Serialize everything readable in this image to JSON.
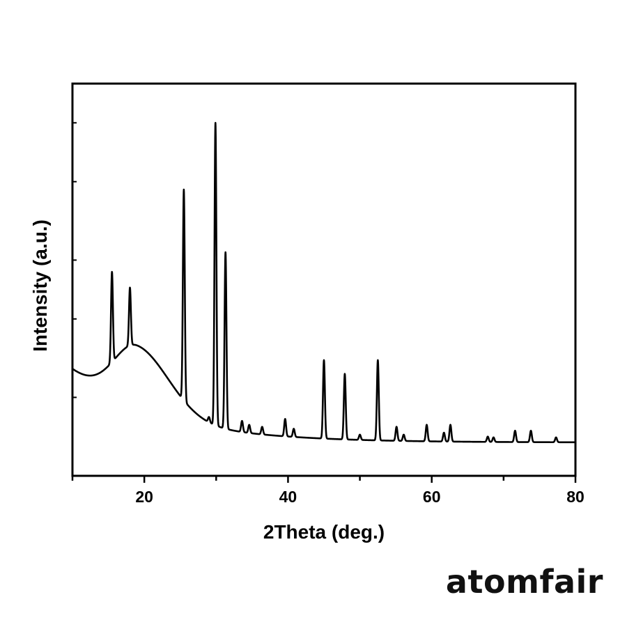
{
  "chart_data": {
    "type": "line",
    "title": "",
    "xlabel": "2Theta (deg.)",
    "ylabel": "Intensity (a.u.)",
    "xlim": [
      10,
      80
    ],
    "ylim": [
      0,
      100
    ],
    "x_ticks": [
      20,
      40,
      60,
      80
    ],
    "y_ticks_labeled": false,
    "grid": false,
    "legend": "none",
    "series": [
      {
        "baseline_start": 27,
        "baseline_end": 8.5,
        "amorphous_hump": {
          "center": 19,
          "height": 16
        },
        "peaks": [
          {
            "x": 15.5,
            "y": 52
          },
          {
            "x": 18.0,
            "y": 48
          },
          {
            "x": 25.5,
            "y": 73
          },
          {
            "x": 29.0,
            "y": 15
          },
          {
            "x": 29.9,
            "y": 90
          },
          {
            "x": 31.3,
            "y": 57
          },
          {
            "x": 33.6,
            "y": 14
          },
          {
            "x": 34.6,
            "y": 13
          },
          {
            "x": 36.4,
            "y": 12.5
          },
          {
            "x": 39.6,
            "y": 14.5
          },
          {
            "x": 40.8,
            "y": 12
          },
          {
            "x": 45.0,
            "y": 29.5
          },
          {
            "x": 47.9,
            "y": 26
          },
          {
            "x": 50.0,
            "y": 10.5
          },
          {
            "x": 52.5,
            "y": 29.5
          },
          {
            "x": 55.1,
            "y": 12.5
          },
          {
            "x": 56.1,
            "y": 10.5
          },
          {
            "x": 59.3,
            "y": 13
          },
          {
            "x": 61.7,
            "y": 11
          },
          {
            "x": 62.6,
            "y": 13
          },
          {
            "x": 67.8,
            "y": 10
          },
          {
            "x": 68.6,
            "y": 9.8
          },
          {
            "x": 71.6,
            "y": 11.5
          },
          {
            "x": 73.8,
            "y": 11.5
          },
          {
            "x": 77.3,
            "y": 9.8
          }
        ]
      }
    ]
  },
  "watermark": "atomfair"
}
